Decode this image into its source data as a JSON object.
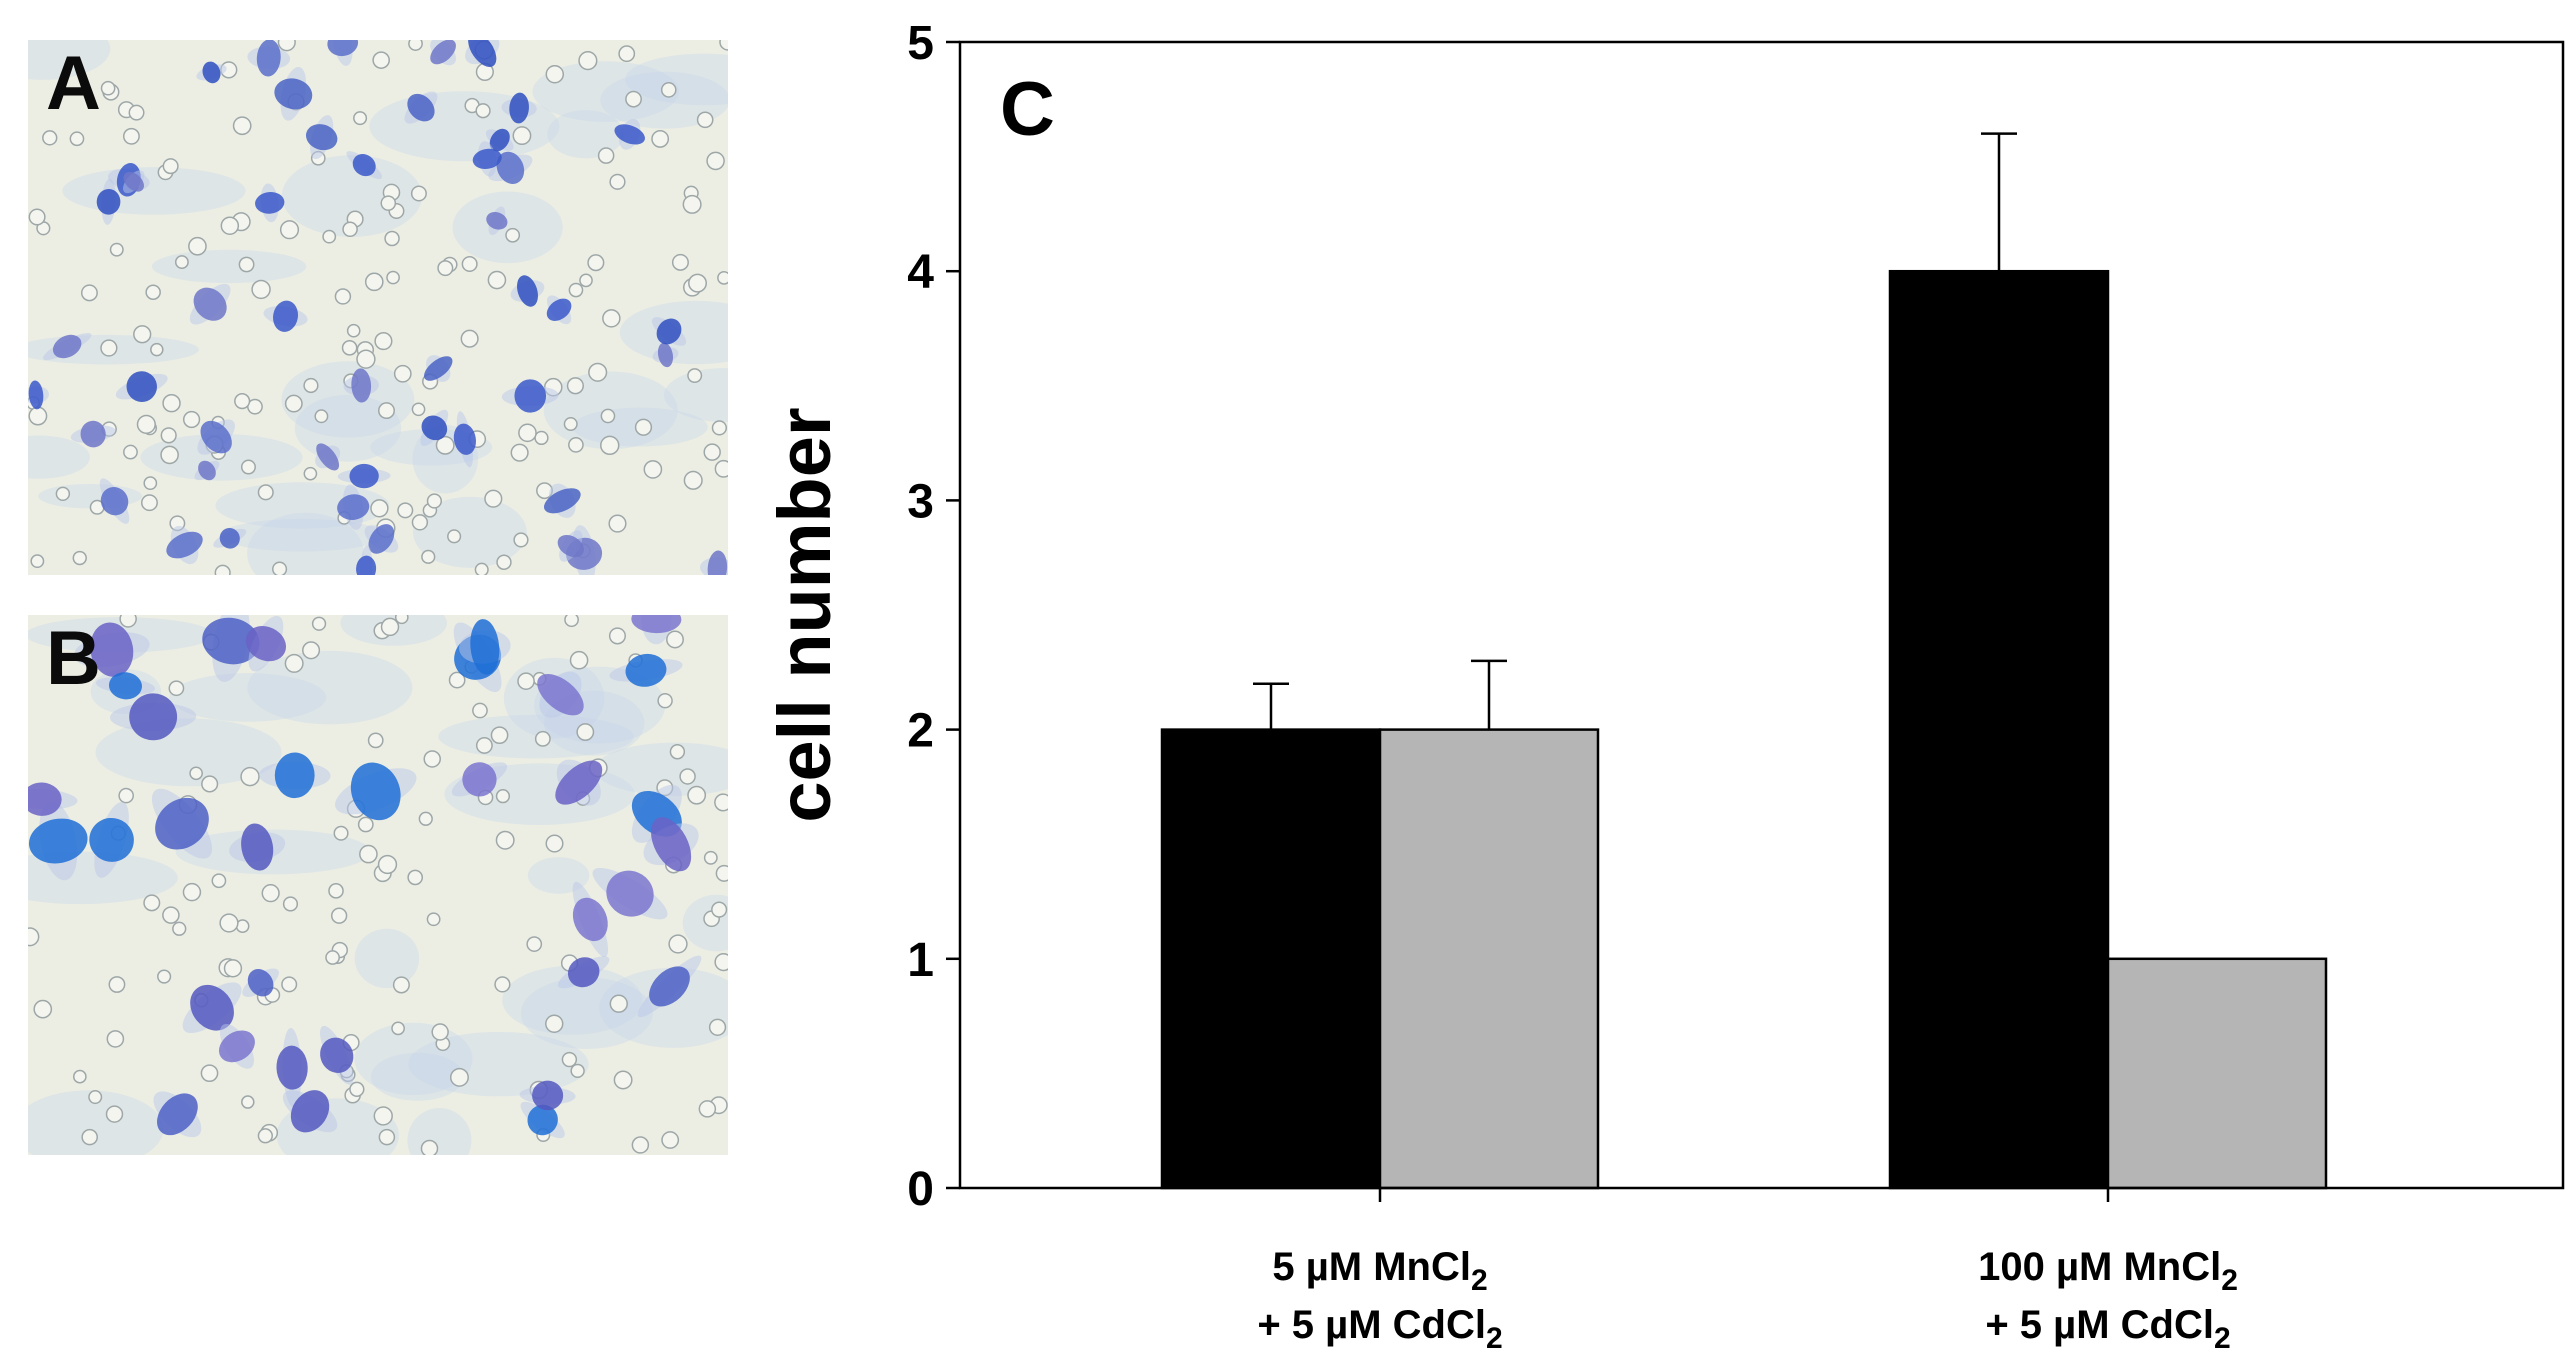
{
  "panels": {
    "a": {
      "label": "A"
    },
    "b": {
      "label": "B"
    }
  },
  "chart_data": {
    "type": "bar",
    "panel_label": "C",
    "ylabel": "cell number",
    "ylim": [
      0,
      5
    ],
    "yticks": [
      "0",
      "1",
      "2",
      "3",
      "4",
      "5"
    ],
    "categories": [
      {
        "line1": "5 µM MnCl",
        "line1_sub": "2",
        "line2": "+ 5 µM CdCl",
        "line2_sub": "2"
      },
      {
        "line1": "100 µM MnCl",
        "line1_sub": "2",
        "line2": "+ 5 µM CdCl",
        "line2_sub": "2"
      }
    ],
    "series": [
      {
        "name": "black",
        "color": "#000000",
        "values": [
          2,
          4
        ],
        "errors": [
          0.2,
          0.6
        ]
      },
      {
        "name": "gray",
        "color": "#b5b5b5",
        "values": [
          2,
          1
        ],
        "errors": [
          0.3,
          0
        ]
      }
    ]
  }
}
